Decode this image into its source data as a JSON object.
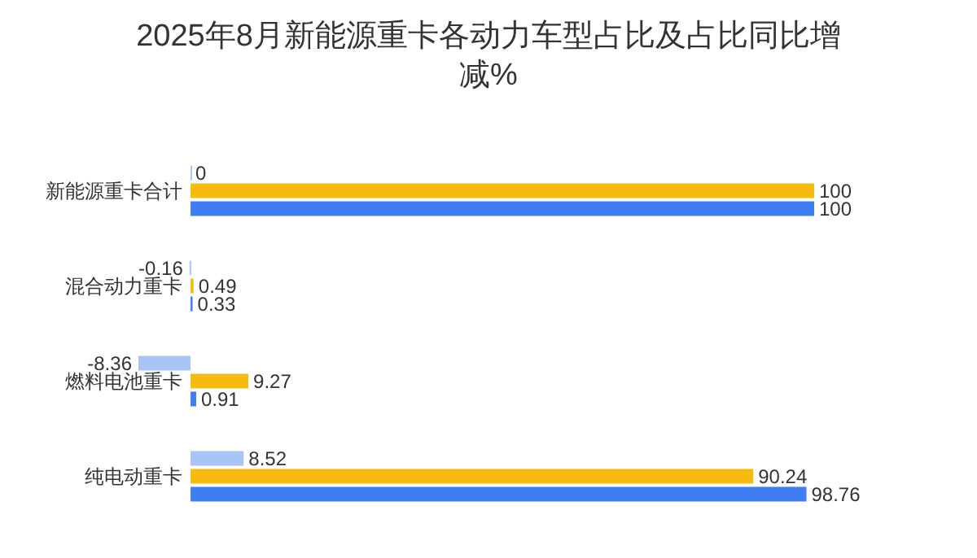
{
  "chart_data": {
    "type": "bar",
    "orientation": "horizontal",
    "title": "2025年8月新能源重卡各动力车型占比及占比同比增减%",
    "categories": [
      "新能源重卡合计",
      "混合动力重卡",
      "燃料电池重卡",
      "纯电动重卡"
    ],
    "series": [
      {
        "color": "#a8c5f7",
        "values": [
          0,
          -0.16,
          -8.36,
          8.52
        ]
      },
      {
        "color": "#f7bb0f",
        "values": [
          100,
          0.49,
          9.27,
          90.24
        ]
      },
      {
        "color": "#3f7ef2",
        "values": [
          100,
          0.33,
          0.91,
          98.76
        ]
      }
    ],
    "data_labels": true
  }
}
